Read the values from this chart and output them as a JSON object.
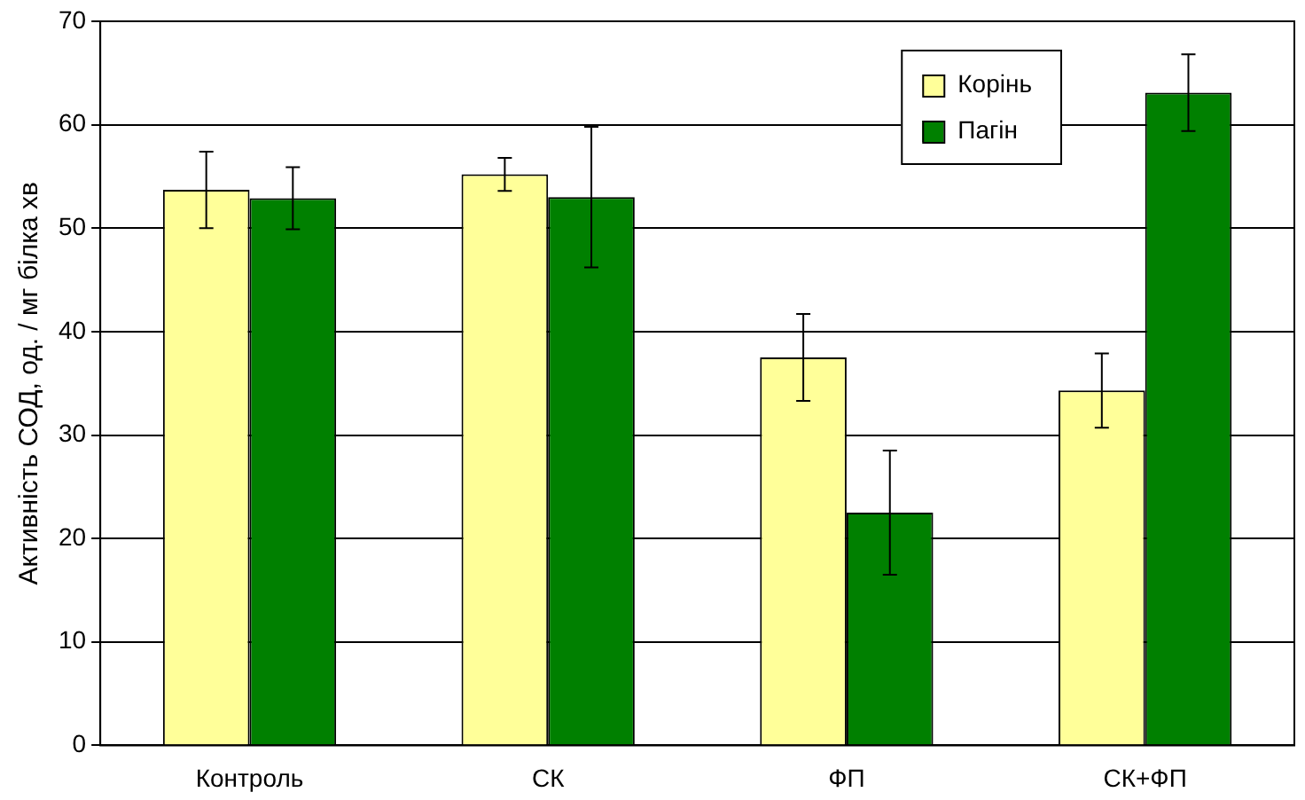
{
  "chart_data": {
    "type": "bar",
    "ylabel": "Активність СОД, од. / мг білка хв",
    "categories": [
      "Контроль",
      "СК",
      "ФП",
      "СК+ФП"
    ],
    "series": [
      {
        "name": "Корінь",
        "color": "#ffff99",
        "values": [
          53.7,
          55.2,
          37.5,
          34.3
        ],
        "errors": [
          3.7,
          1.6,
          4.2,
          3.6
        ]
      },
      {
        "name": "Пагін",
        "color": "#008000",
        "values": [
          52.9,
          53.0,
          22.5,
          63.1
        ],
        "errors": [
          3.0,
          6.8,
          6.0,
          3.7
        ]
      }
    ],
    "ylim": [
      0,
      70
    ],
    "yticks": [
      0,
      10,
      20,
      30,
      40,
      50,
      60,
      70
    ],
    "grid": "y",
    "legend": "top right"
  }
}
